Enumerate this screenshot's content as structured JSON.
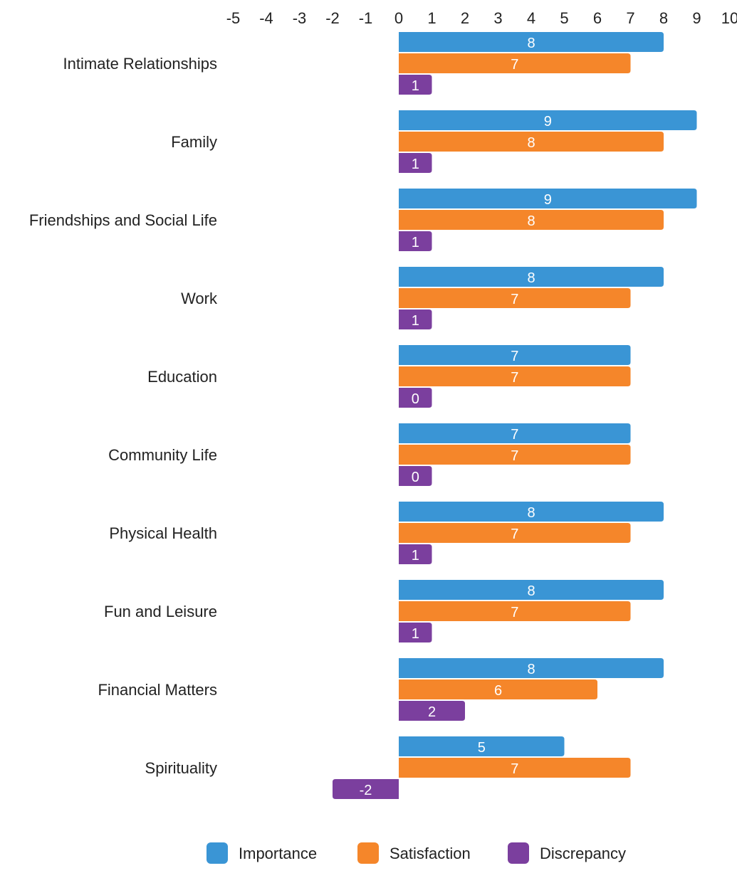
{
  "chart_data": {
    "type": "bar",
    "orientation": "horizontal",
    "title": "",
    "xlabel": "",
    "ylabel": "",
    "xlim": [
      -5,
      10
    ],
    "xticks": [
      -5,
      -4,
      -3,
      -2,
      -1,
      0,
      1,
      2,
      3,
      4,
      5,
      6,
      7,
      8,
      9,
      10
    ],
    "axis_position": "top",
    "grid": false,
    "legend_position": "bottom-center",
    "categories": [
      "Intimate Relationships",
      "Family",
      "Friendships and Social Life",
      "Work",
      "Education",
      "Community Life",
      "Physical Health",
      "Fun and Leisure",
      "Financial Matters",
      "Spirituality"
    ],
    "series": [
      {
        "name": "Importance",
        "color": "#3a95d5",
        "values": [
          8,
          9,
          9,
          8,
          7,
          7,
          8,
          8,
          8,
          5
        ]
      },
      {
        "name": "Satisfaction",
        "color": "#f5862a",
        "values": [
          7,
          8,
          8,
          7,
          7,
          7,
          7,
          7,
          6,
          7
        ]
      },
      {
        "name": "Discrepancy",
        "color": "#7b3f9e",
        "values": [
          1,
          1,
          1,
          1,
          0,
          0,
          1,
          1,
          2,
          -2
        ]
      }
    ]
  }
}
